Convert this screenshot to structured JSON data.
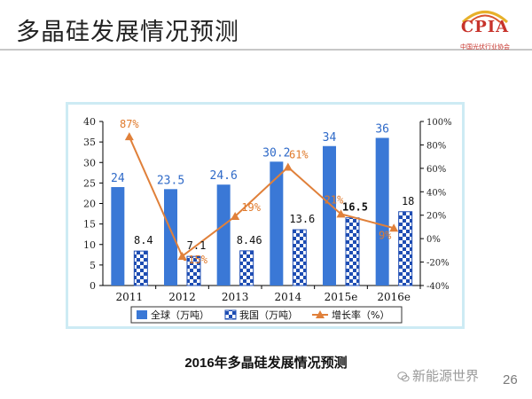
{
  "header": {
    "title": "多晶硅发展情况预测"
  },
  "logo": {
    "text": "CPIA",
    "subtitle": "中国光伏行业协会",
    "icon": "sun-arc-icon"
  },
  "caption": "2016年多晶硅发展情况预测",
  "watermark": {
    "text": "新能源世界",
    "icon": "wechat-icon"
  },
  "page_number": "26",
  "colors": {
    "global_bar": "#3a78d6",
    "china_bar": "#1e4db3",
    "growth_line": "#e0803a",
    "frame": "#cdebf4"
  },
  "chart_data": {
    "type": "bar",
    "categories": [
      "2011",
      "2012",
      "2013",
      "2014",
      "2015e",
      "2016e"
    ],
    "series": [
      {
        "name": "全球（万吨）",
        "type": "bar",
        "axis": "left",
        "values": [
          24,
          23.5,
          24.6,
          30.2,
          34,
          36
        ],
        "labels": [
          "24",
          "23.5",
          "24.6",
          "30.2",
          "34",
          "36"
        ]
      },
      {
        "name": "我国（万吨）",
        "type": "bar",
        "axis": "left",
        "values": [
          8.4,
          7.1,
          8.46,
          13.6,
          16.5,
          18
        ],
        "labels": [
          "8.4",
          "7.1",
          "8.46",
          "13.6",
          "16.5",
          "18"
        ]
      },
      {
        "name": "增长率（%）",
        "type": "line",
        "axis": "right",
        "values": [
          87,
          -15,
          19,
          61,
          21,
          9
        ],
        "labels": [
          "87%",
          "-15%",
          "19%",
          "61%",
          "21%",
          "9%"
        ]
      }
    ],
    "left_axis": {
      "ylim": [
        0,
        40
      ],
      "ticks": [
        "0",
        "5",
        "10",
        "15",
        "20",
        "25",
        "30",
        "35",
        "40"
      ]
    },
    "right_axis": {
      "ylim": [
        -40,
        100
      ],
      "ticks": [
        "-40%",
        "-20%",
        "0%",
        "20%",
        "40%",
        "60%",
        "80%",
        "100%"
      ]
    },
    "legend": "bottom",
    "grid": false
  }
}
